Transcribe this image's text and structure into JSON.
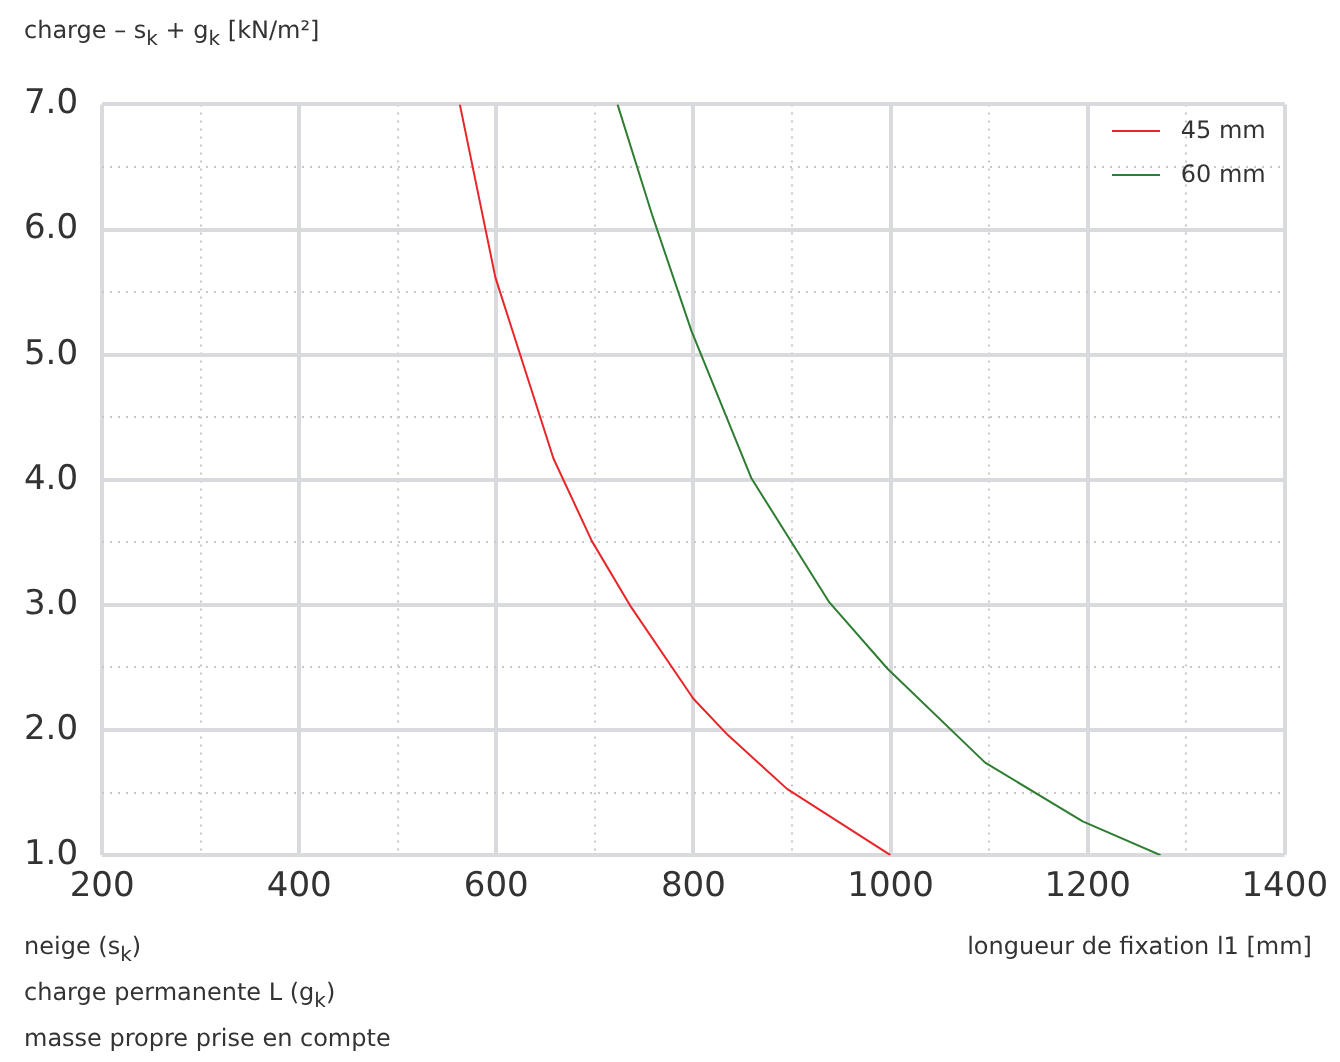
{
  "chart_data": {
    "type": "line",
    "ylabel": "charge – s$_{k}$ + g$_{k}$ [kN/m²]",
    "xlabel": "longueur de fixation l1 [mm]",
    "annotations": [
      "neige (s$_{k}$)",
      "charge permanente L (g$_{k}$)",
      "masse propre prise en compte"
    ],
    "xlim": [
      200,
      1400
    ],
    "ylim": [
      1,
      7
    ],
    "xticks": [
      200,
      {
        "value": 300,
        "label": null
      },
      400,
      {
        "value": 500,
        "label": null
      },
      600,
      {
        "value": 700,
        "label": null
      },
      800,
      {
        "value": 900,
        "label": null
      },
      1000,
      {
        "value": 1100,
        "label": null
      },
      1200,
      {
        "value": 1300,
        "label": null
      },
      1400
    ],
    "yticks": [
      {
        "value": 1,
        "label": "1.0"
      },
      {
        "value": 1.5,
        "label": null
      },
      {
        "value": 2,
        "label": "2.0"
      },
      {
        "value": 2.5,
        "label": null
      },
      {
        "value": 3,
        "label": "3.0"
      },
      {
        "value": 3.5,
        "label": null
      },
      {
        "value": 4,
        "label": "4.0"
      },
      {
        "value": 4.5,
        "label": null
      },
      {
        "value": 5,
        "label": "5.0"
      },
      {
        "value": 5.5,
        "label": null
      },
      {
        "value": 6,
        "label": "6.0"
      },
      {
        "value": 6.5,
        "label": null
      },
      {
        "value": 7,
        "label": "7.0"
      }
    ],
    "grid": true,
    "legend": "top right",
    "marker": "none",
    "line_style": "solid",
    "series": [
      {
        "name": "45 mm",
        "color": "#e8262a",
        "x": [
          563,
          599,
          658,
          697,
          737,
          800,
          835,
          895,
          1000
        ],
        "values": [
          7.0,
          5.62,
          4.17,
          3.51,
          2.98,
          2.25,
          1.96,
          1.53,
          1.0
        ]
      },
      {
        "name": "60 mm",
        "color": "#2e7d32",
        "x": [
          723,
          758,
          798,
          859,
          938,
          997,
          1096,
          1195,
          1274
        ],
        "values": [
          7.0,
          6.12,
          5.19,
          4.01,
          3.02,
          2.49,
          1.74,
          1.27,
          1.0
        ]
      }
    ]
  }
}
